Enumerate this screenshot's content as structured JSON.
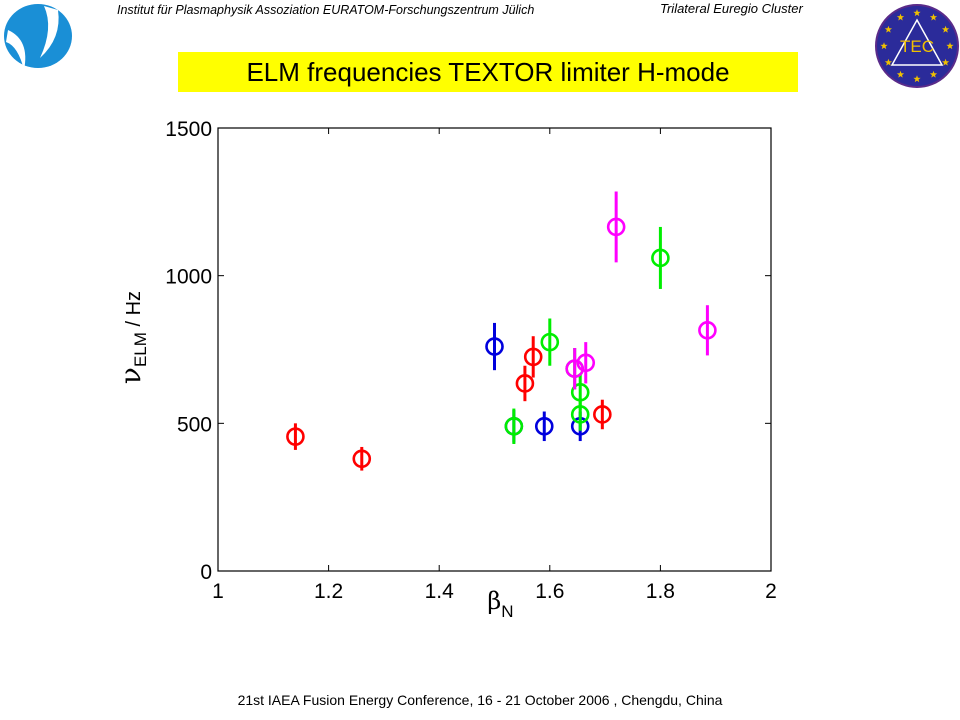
{
  "header": {
    "institute": "Institut für Plasmaphysik Assoziation EURATOM-Forschungszentrum Jülich",
    "cluster": "Trilateral Euregio Cluster",
    "tec_logo_text": "TEC"
  },
  "title": "ELM frequencies TEXTOR limiter H-mode",
  "footer": "21st IAEA Fusion Energy Conference, 16 - 21 October 2006 , Chengdu, China",
  "colors": {
    "red": "#ff0000",
    "blue": "#0000dd",
    "green": "#00ee00",
    "magenta": "#ff00ff",
    "title_bg": "#ffff00",
    "logo_blue": "#1a8fd6",
    "tec_blue": "#2b2b9a",
    "tec_gold": "#f0c000"
  },
  "chart_data": {
    "type": "scatter",
    "xlabel": "βN",
    "ylabel": "νELM / Hz",
    "xlim": [
      1,
      2
    ],
    "ylim": [
      0,
      1500
    ],
    "xticks": [
      "1",
      "1.2",
      "1.4",
      "1.6",
      "1.8",
      "2"
    ],
    "yticks": [
      "0",
      "500",
      "1000",
      "1500"
    ],
    "grid": false,
    "series": [
      {
        "color": "red",
        "points": [
          {
            "x": 1.14,
            "y": 455,
            "err": 45
          },
          {
            "x": 1.26,
            "y": 380,
            "err": 40
          },
          {
            "x": 1.555,
            "y": 635,
            "err": 60
          },
          {
            "x": 1.57,
            "y": 725,
            "err": 70
          },
          {
            "x": 1.695,
            "y": 530,
            "err": 50
          }
        ]
      },
      {
        "color": "blue",
        "points": [
          {
            "x": 1.5,
            "y": 760,
            "err": 80
          },
          {
            "x": 1.535,
            "y": 490,
            "err": 55
          },
          {
            "x": 1.59,
            "y": 490,
            "err": 50
          },
          {
            "x": 1.655,
            "y": 490,
            "err": 50
          }
        ]
      },
      {
        "color": "green",
        "points": [
          {
            "x": 1.535,
            "y": 490,
            "err": 60
          },
          {
            "x": 1.6,
            "y": 775,
            "err": 80
          },
          {
            "x": 1.645,
            "y": 685,
            "err": 70
          },
          {
            "x": 1.655,
            "y": 605,
            "err": 60
          },
          {
            "x": 1.655,
            "y": 530,
            "err": 55
          },
          {
            "x": 1.8,
            "y": 1060,
            "err": 105
          }
        ]
      },
      {
        "color": "magenta",
        "points": [
          {
            "x": 1.645,
            "y": 685,
            "err": 70
          },
          {
            "x": 1.665,
            "y": 705,
            "err": 70
          },
          {
            "x": 1.72,
            "y": 1165,
            "err": 120
          },
          {
            "x": 1.885,
            "y": 815,
            "err": 85
          }
        ]
      }
    ]
  }
}
